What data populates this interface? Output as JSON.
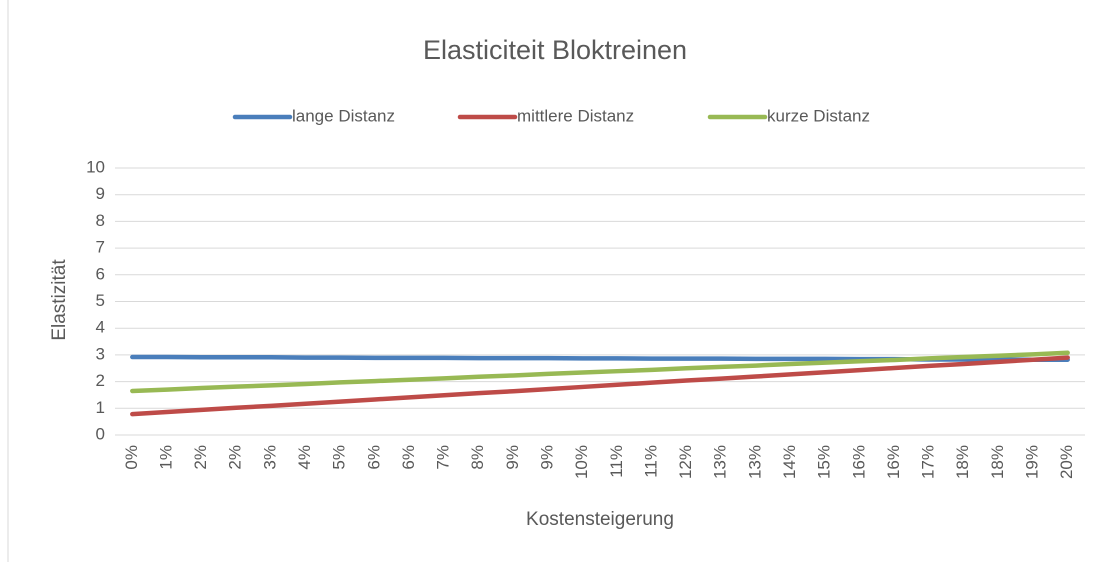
{
  "chart_data": {
    "type": "line",
    "title": "Elasticiteit Bloktreinen",
    "x_label": "Kostensteigerung",
    "y_label": "Elastizität",
    "categories": [
      "0%",
      "1%",
      "2%",
      "2%",
      "3%",
      "4%",
      "5%",
      "6%",
      "6%",
      "7%",
      "8%",
      "9%",
      "9%",
      "10%",
      "11%",
      "11%",
      "12%",
      "13%",
      "13%",
      "14%",
      "15%",
      "16%",
      "16%",
      "17%",
      "18%",
      "18%",
      "19%",
      "20%"
    ],
    "series": [
      {
        "name": "lange Distanz",
        "color": "#4a7ebb",
        "values": [
          2.92,
          2.92,
          2.91,
          2.91,
          2.91,
          2.9,
          2.9,
          2.89,
          2.89,
          2.89,
          2.88,
          2.88,
          2.88,
          2.87,
          2.87,
          2.86,
          2.86,
          2.86,
          2.85,
          2.85,
          2.85,
          2.84,
          2.84,
          2.83,
          2.83,
          2.83,
          2.82,
          2.82
        ]
      },
      {
        "name": "mittlere Distanz",
        "color": "#be4b48",
        "values": [
          0.78,
          0.86,
          0.94,
          1.02,
          1.09,
          1.17,
          1.25,
          1.33,
          1.41,
          1.49,
          1.57,
          1.64,
          1.72,
          1.8,
          1.88,
          1.96,
          2.04,
          2.11,
          2.19,
          2.27,
          2.35,
          2.43,
          2.51,
          2.59,
          2.66,
          2.74,
          2.82,
          2.9
        ]
      },
      {
        "name": "kurze Distanz",
        "color": "#98b954",
        "values": [
          1.65,
          1.7,
          1.76,
          1.81,
          1.86,
          1.91,
          1.97,
          2.02,
          2.07,
          2.12,
          2.18,
          2.23,
          2.29,
          2.34,
          2.39,
          2.44,
          2.5,
          2.55,
          2.6,
          2.66,
          2.71,
          2.76,
          2.81,
          2.87,
          2.92,
          2.97,
          3.02,
          3.08
        ]
      }
    ],
    "ylim": [
      0,
      10
    ],
    "yticks": [
      0,
      1,
      2,
      3,
      4,
      5,
      6,
      7,
      8,
      9,
      10
    ],
    "grid": true,
    "legend": "top"
  }
}
